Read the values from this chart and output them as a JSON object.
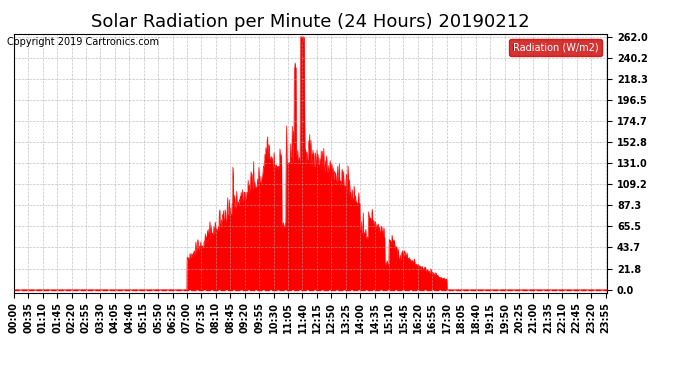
{
  "title": "Solar Radiation per Minute (24 Hours) 20190212",
  "copyright": "Copyright 2019 Cartronics.com",
  "legend_label": "Radiation (W/m2)",
  "yticks": [
    0.0,
    21.8,
    43.7,
    65.5,
    87.3,
    109.2,
    131.0,
    152.8,
    174.7,
    196.5,
    218.3,
    240.2,
    262.0
  ],
  "ymax": 262.0,
  "fill_color": "#ff0000",
  "line_color": "#ff0000",
  "zero_line_color": "#ff0000",
  "background_color": "#ffffff",
  "grid_color": "#aaaaaa",
  "title_fontsize": 13,
  "tick_fontsize": 7,
  "legend_bg": "#cc0000",
  "legend_text_color": "#ffffff"
}
